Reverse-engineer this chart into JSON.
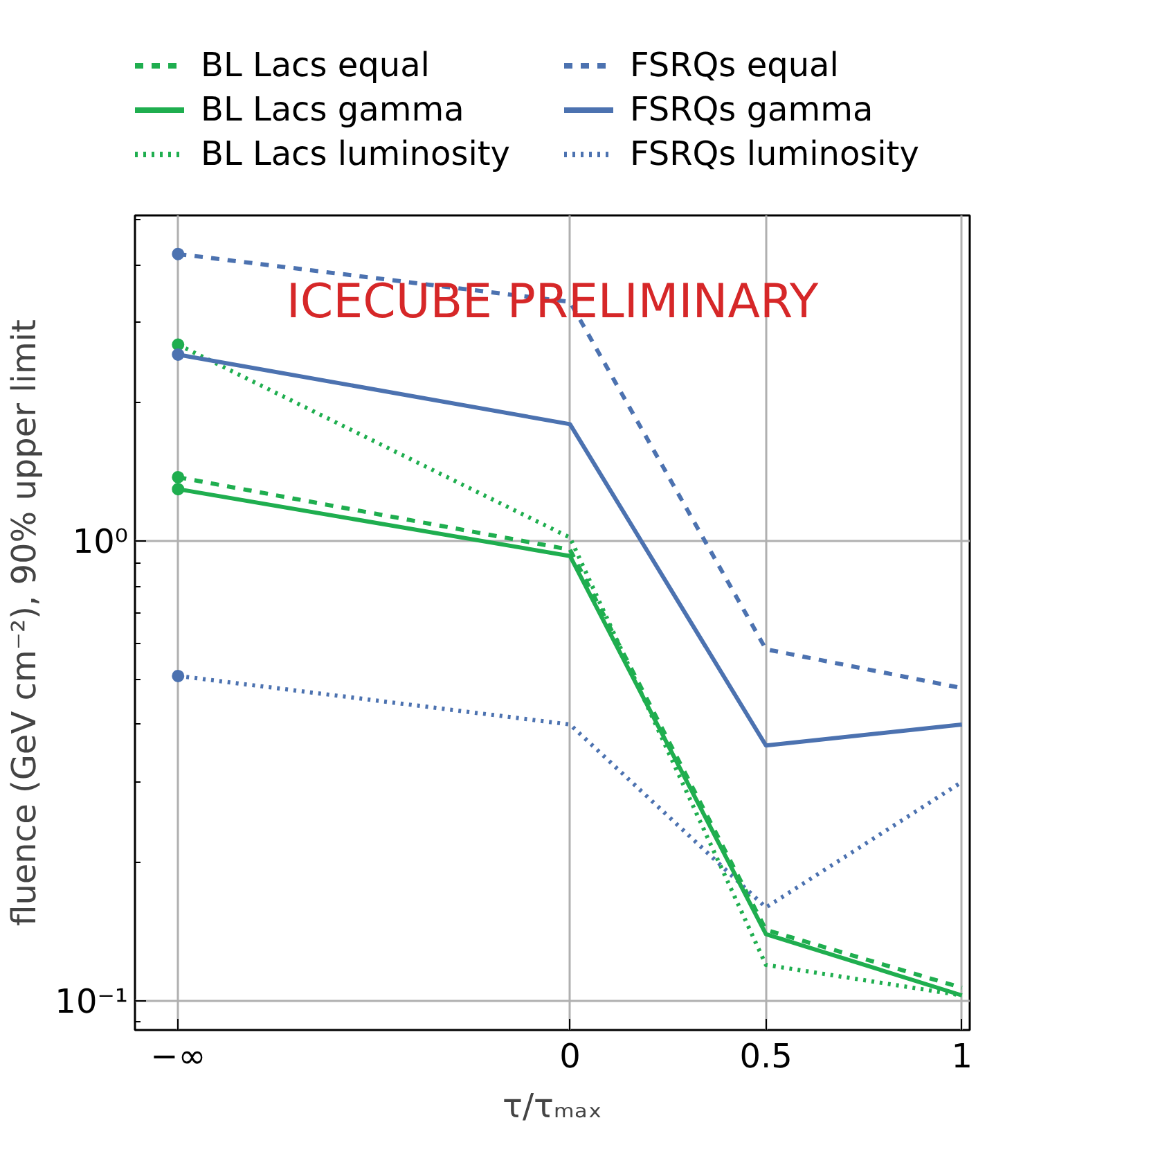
{
  "chart_data": {
    "type": "line",
    "xlabel": "τ/τₘₐₓ",
    "ylabel": "fluence (GeV cm⁻²), 90% upper limit",
    "x": [
      -1,
      0,
      0.5,
      1
    ],
    "xlim": [
      -1.11,
      1.02
    ],
    "xticks": [
      {
        "value": -1,
        "label": "−∞"
      },
      0,
      0.5,
      1
    ],
    "ylim": [
      0.0866,
      5.12
    ],
    "yticks": [
      {
        "value": 0.1,
        "label": "10⁻¹"
      },
      {
        "value": 1,
        "label": "10⁰"
      }
    ],
    "log": "y",
    "grid": true,
    "legend": "top",
    "annotations": [
      "ICECUBE PRELIMINARY"
    ],
    "series": [
      {
        "name": "BL Lacs equal",
        "color": "#1fae4f",
        "line_style": "dashed",
        "values": [
          1.38,
          0.96,
          0.143,
          0.107
        ]
      },
      {
        "name": "BL Lacs gamma",
        "color": "#1fae4f",
        "line_style": "solid",
        "values": [
          1.3,
          0.93,
          0.14,
          0.103
        ]
      },
      {
        "name": "BL Lacs luminosity",
        "color": "#1fae4f",
        "line_style": "dotted",
        "values": [
          2.68,
          1.02,
          0.12,
          0.103
        ]
      },
      {
        "name": "FSRQs equal",
        "color": "#4c72b0",
        "line_style": "dashed",
        "values": [
          4.22,
          3.32,
          0.583,
          0.48
        ]
      },
      {
        "name": "FSRQs gamma",
        "color": "#4c72b0",
        "line_style": "solid",
        "values": [
          2.55,
          1.8,
          0.36,
          0.4
        ]
      },
      {
        "name": "FSRQs luminosity",
        "color": "#4c72b0",
        "line_style": "dotted",
        "values": [
          0.51,
          0.4,
          0.16,
          0.3
        ]
      }
    ]
  }
}
